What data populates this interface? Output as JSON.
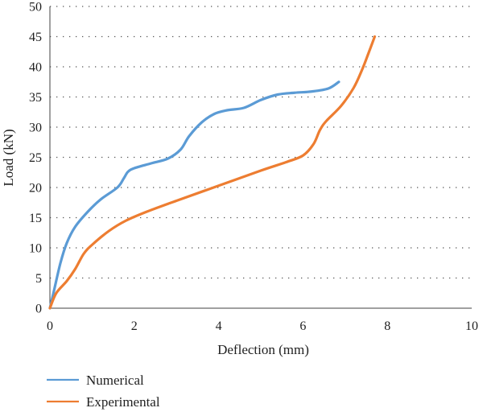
{
  "chart_data": {
    "type": "line",
    "xlabel": "Deflection (mm)",
    "ylabel": "Load (kN)",
    "xlim": [
      0,
      10
    ],
    "ylim": [
      0,
      50
    ],
    "xticks": [
      0,
      2,
      4,
      6,
      8,
      10
    ],
    "yticks": [
      0,
      5,
      10,
      15,
      20,
      25,
      30,
      35,
      40,
      45,
      50
    ],
    "grid": "horizontal-dotted",
    "legend_position": "bottom-left",
    "series": [
      {
        "name": "Numerical",
        "color": "#5B9BD5",
        "x": [
          0,
          0.1,
          0.25,
          0.4,
          0.6,
          0.9,
          1.2,
          1.6,
          1.75,
          1.85,
          2.0,
          2.4,
          2.8,
          3.1,
          3.3,
          3.6,
          3.9,
          4.2,
          4.6,
          5.0,
          5.4,
          5.8,
          6.2,
          6.6,
          6.85
        ],
        "y": [
          0,
          3,
          7.5,
          10.8,
          13.5,
          16,
          18,
          20,
          21.5,
          22.6,
          23.2,
          24,
          24.8,
          26.3,
          28.5,
          30.8,
          32.2,
          32.8,
          33.2,
          34.5,
          35.4,
          35.7,
          35.9,
          36.4,
          37.5
        ]
      },
      {
        "name": "Experimental",
        "color": "#ED7D31",
        "x": [
          0,
          0.15,
          0.4,
          0.6,
          0.8,
          1.0,
          1.4,
          1.8,
          2.3,
          3.0,
          4.0,
          5.0,
          5.6,
          6.0,
          6.25,
          6.4,
          6.55,
          6.9,
          7.2,
          7.4,
          7.55,
          7.7
        ],
        "y": [
          0,
          2.5,
          4.5,
          6.5,
          9,
          10.5,
          12.8,
          14.5,
          16,
          17.8,
          20.3,
          22.8,
          24.2,
          25.3,
          27.2,
          29.5,
          31,
          33.5,
          36.5,
          39.5,
          42.2,
          45
        ]
      }
    ]
  }
}
